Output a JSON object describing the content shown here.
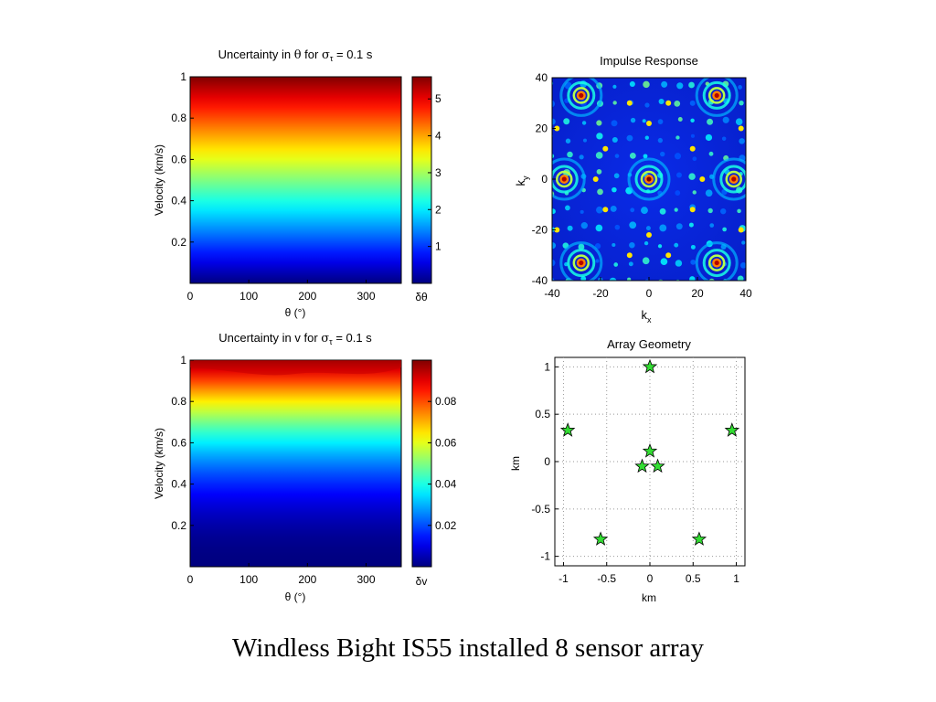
{
  "slide": {
    "caption": "Windless Bight IS55 installed 8 sensor array"
  },
  "colormap": "jet",
  "chart_data": [
    {
      "id": "theta",
      "type": "heatmap",
      "title_prefix": "Uncertainty in ",
      "title_symbol": "θ",
      "title_mid": " for ",
      "title_sigma": "σ",
      "title_sub": "τ",
      "title_suffix": " = 0.1 s",
      "xlabel": "θ (°)",
      "ylabel": "Velocity (km/s)",
      "xlim": [
        0,
        360
      ],
      "ylim": [
        0,
        1
      ],
      "xticks": [
        0,
        100,
        200,
        300
      ],
      "yticks": [
        0.2,
        0.4,
        0.6,
        0.8,
        1
      ],
      "colorbar": {
        "label": "δθ",
        "range": [
          0,
          5.6
        ],
        "ticks": [
          "1",
          "2",
          "3",
          "4",
          "5"
        ]
      },
      "profile": "velocity-linear"
    },
    {
      "id": "velocity",
      "type": "heatmap",
      "title_prefix": "Uncertainty in ",
      "title_symbol": "v",
      "title_mid": " for ",
      "title_sigma": "σ",
      "title_sub": "τ",
      "title_suffix": " = 0.1 s",
      "xlabel": "θ (°)",
      "ylabel": "Velocity (km/s)",
      "xlim": [
        0,
        360
      ],
      "ylim": [
        0,
        1
      ],
      "xticks": [
        0,
        100,
        200,
        300
      ],
      "yticks": [
        0.2,
        0.4,
        0.6,
        0.8,
        1
      ],
      "colorbar": {
        "label": "δv",
        "range": [
          0,
          0.1
        ],
        "ticks": [
          "0.02",
          "0.04",
          "0.06",
          "0.08"
        ]
      },
      "profile": "velocity-squared"
    },
    {
      "id": "impulse",
      "type": "heatmap",
      "title": "Impulse Response",
      "xlabel": "k",
      "xlabel_sub": "x",
      "ylabel": "k",
      "ylabel_sub": "y",
      "xlim": [
        -40,
        40
      ],
      "ylim": [
        -40,
        40
      ],
      "xticks": [
        "-40",
        "-20",
        "0",
        "20",
        "40"
      ],
      "yticks": [
        "-40",
        "-20",
        "0",
        "20",
        "40"
      ],
      "peaks": [
        [
          0,
          0
        ],
        [
          -28,
          33
        ],
        [
          28,
          33
        ],
        [
          -28,
          -33
        ],
        [
          28,
          -33
        ],
        [
          -35,
          0
        ],
        [
          35,
          0
        ]
      ]
    },
    {
      "id": "geometry",
      "type": "scatter",
      "title": "Array Geometry",
      "xlabel": "km",
      "ylabel": "km",
      "xlim": [
        -1.1,
        1.1
      ],
      "ylim": [
        -1.1,
        1.1
      ],
      "xticks": [
        "-1",
        "-0.5",
        "0",
        "0.5",
        "1"
      ],
      "yticks": [
        "-1",
        "-0.5",
        "0",
        "0.5",
        "1"
      ],
      "grid": true,
      "marker": "star",
      "marker_color": "#33dd33",
      "points": [
        {
          "x": 0.0,
          "y": 1.0
        },
        {
          "x": -0.95,
          "y": 0.33
        },
        {
          "x": 0.95,
          "y": 0.33
        },
        {
          "x": 0.0,
          "y": 0.11
        },
        {
          "x": -0.09,
          "y": -0.05
        },
        {
          "x": 0.09,
          "y": -0.05
        },
        {
          "x": -0.57,
          "y": -0.82
        },
        {
          "x": 0.57,
          "y": -0.82
        }
      ]
    }
  ]
}
